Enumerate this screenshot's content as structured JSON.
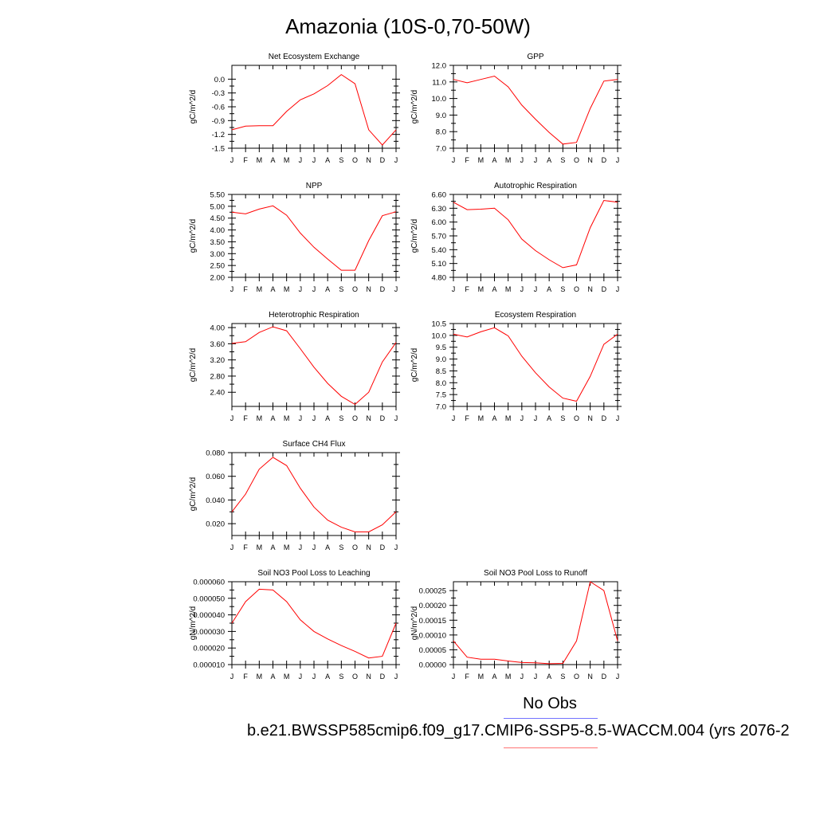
{
  "title": "Amazonia (10S-0,70-50W)",
  "legend": {
    "obs_label": "No Obs",
    "case_label": "b.e21.BWSSP585cmip6.f09_g17.CMIP6-SSP5-8.5-WACCM.004 (yrs 2076-2",
    "obs_color": "#0000ff",
    "case_color": "#ff0000"
  },
  "chart_data": [
    {
      "type": "line",
      "title": "Net Ecosystem Exchange",
      "ylabel": "gC/m^2/d",
      "categories": [
        "J",
        "F",
        "M",
        "A",
        "M",
        "J",
        "J",
        "A",
        "S",
        "O",
        "N",
        "D",
        "J"
      ],
      "yticks": [
        "0.0",
        "-0.3",
        "-0.6",
        "-0.9",
        "-1.2",
        "-1.5"
      ],
      "ytick_values": [
        0.0,
        -0.3,
        -0.6,
        -0.9,
        -1.2,
        -1.5
      ],
      "ylim": [
        -1.5,
        0.3
      ],
      "series": [
        {
          "values": [
            -1.1,
            -1.02,
            -1.01,
            -1.01,
            -0.7,
            -0.45,
            -0.32,
            -0.14,
            0.1,
            -0.1,
            -1.1,
            -1.43,
            -1.1
          ]
        }
      ]
    },
    {
      "type": "line",
      "title": "GPP",
      "ylabel": "gC/m^2/d",
      "categories": [
        "J",
        "F",
        "M",
        "A",
        "M",
        "J",
        "J",
        "A",
        "S",
        "O",
        "N",
        "D",
        "J"
      ],
      "yticks": [
        "12.0",
        "11.0",
        "10.0",
        "9.0",
        "8.0",
        "7.0"
      ],
      "ytick_values": [
        12,
        11,
        10,
        9,
        8,
        7
      ],
      "ylim": [
        7.0,
        12.0
      ],
      "series": [
        {
          "values": [
            11.15,
            10.95,
            11.15,
            11.35,
            10.7,
            9.6,
            8.75,
            7.95,
            7.25,
            7.35,
            9.4,
            11.05,
            11.15
          ]
        }
      ]
    },
    {
      "type": "line",
      "title": "NPP",
      "ylabel": "gC/m^2/d",
      "categories": [
        "J",
        "F",
        "M",
        "A",
        "M",
        "J",
        "J",
        "A",
        "S",
        "O",
        "N",
        "D",
        "J"
      ],
      "yticks": [
        "5.50",
        "5.00",
        "4.50",
        "4.00",
        "3.50",
        "3.00",
        "2.50",
        "2.00"
      ],
      "ytick_values": [
        5.5,
        5.0,
        4.5,
        4.0,
        3.5,
        3.0,
        2.5,
        2.0
      ],
      "ylim": [
        2.0,
        5.5
      ],
      "series": [
        {
          "values": [
            4.75,
            4.68,
            4.88,
            5.02,
            4.62,
            3.87,
            3.27,
            2.77,
            2.3,
            2.3,
            3.55,
            4.6,
            4.77
          ]
        }
      ]
    },
    {
      "type": "line",
      "title": "Autotrophic Respiration",
      "ylabel": "gC/m^2/d",
      "categories": [
        "J",
        "F",
        "M",
        "A",
        "M",
        "J",
        "J",
        "A",
        "S",
        "O",
        "N",
        "D",
        "J"
      ],
      "yticks": [
        "6.60",
        "6.30",
        "6.00",
        "5.70",
        "5.40",
        "5.10",
        "4.80"
      ],
      "ytick_values": [
        6.6,
        6.3,
        6.0,
        5.7,
        5.4,
        5.1,
        4.8
      ],
      "ylim": [
        4.8,
        6.6
      ],
      "series": [
        {
          "values": [
            6.43,
            6.27,
            6.28,
            6.3,
            6.05,
            5.63,
            5.38,
            5.18,
            5.01,
            5.07,
            5.88,
            6.47,
            6.43
          ]
        }
      ]
    },
    {
      "type": "line",
      "title": "Heterotrophic Respiration",
      "ylabel": "gC/m^2/d",
      "categories": [
        "J",
        "F",
        "M",
        "A",
        "M",
        "J",
        "J",
        "A",
        "S",
        "O",
        "N",
        "D",
        "J"
      ],
      "yticks": [
        "4.00",
        "3.60",
        "3.20",
        "2.80",
        "2.40"
      ],
      "ytick_values": [
        4.0,
        3.6,
        3.2,
        2.8,
        2.4
      ],
      "ylim": [
        2.05,
        4.1
      ],
      "series": [
        {
          "values": [
            3.61,
            3.65,
            3.88,
            4.02,
            3.92,
            3.48,
            3.02,
            2.62,
            2.3,
            2.1,
            2.4,
            3.15,
            3.63
          ]
        }
      ]
    },
    {
      "type": "line",
      "title": "Ecosystem Respiration",
      "ylabel": "gC/m^2/d",
      "categories": [
        "J",
        "F",
        "M",
        "A",
        "M",
        "J",
        "J",
        "A",
        "S",
        "O",
        "N",
        "D",
        "J"
      ],
      "yticks": [
        "10.5",
        "10.0",
        "9.5",
        "9.0",
        "8.5",
        "8.0",
        "7.5",
        "7.0"
      ],
      "ytick_values": [
        10.5,
        10.0,
        9.5,
        9.0,
        8.5,
        8.0,
        7.5,
        7.0
      ],
      "ylim": [
        7.0,
        10.5
      ],
      "series": [
        {
          "values": [
            10.05,
            9.93,
            10.15,
            10.32,
            9.98,
            9.12,
            8.42,
            7.82,
            7.35,
            7.22,
            8.27,
            9.62,
            10.05
          ]
        }
      ]
    },
    {
      "type": "line",
      "title": "Surface CH4 Flux",
      "ylabel": "gC/m^2/d",
      "categories": [
        "J",
        "F",
        "M",
        "A",
        "M",
        "J",
        "J",
        "A",
        "S",
        "O",
        "N",
        "D",
        "J"
      ],
      "yticks": [
        "0.080",
        "0.060",
        "0.040",
        "0.020"
      ],
      "ytick_values": [
        0.08,
        0.06,
        0.04,
        0.02
      ],
      "ylim": [
        0.01,
        0.08
      ],
      "series": [
        {
          "values": [
            0.03,
            0.045,
            0.066,
            0.076,
            0.069,
            0.05,
            0.034,
            0.023,
            0.017,
            0.013,
            0.013,
            0.019,
            0.03
          ]
        }
      ]
    },
    {
      "type": "line",
      "title": "Soil NO3 Pool Loss to Leaching",
      "ylabel": "gN/m^2/d",
      "categories": [
        "J",
        "F",
        "M",
        "A",
        "M",
        "J",
        "J",
        "A",
        "S",
        "O",
        "N",
        "D",
        "J"
      ],
      "yticks": [
        "0.000060",
        "0.000050",
        "0.000040",
        "0.000030",
        "0.000020",
        "0.000010"
      ],
      "ytick_values": [
        6e-05,
        5e-05,
        4e-05,
        3e-05,
        2e-05,
        1e-05
      ],
      "ylim": [
        1e-05,
        6e-05
      ],
      "series": [
        {
          "values": [
            3.5e-05,
            4.8e-05,
            5.55e-05,
            5.5e-05,
            4.8e-05,
            3.7e-05,
            3e-05,
            2.55e-05,
            2.15e-05,
            1.8e-05,
            1.4e-05,
            1.5e-05,
            3.5e-05
          ]
        }
      ]
    },
    {
      "type": "line",
      "title": "Soil NO3 Pool Loss to Runoff",
      "ylabel": "gN/m^2/d",
      "categories": [
        "J",
        "F",
        "M",
        "A",
        "M",
        "J",
        "J",
        "A",
        "S",
        "O",
        "N",
        "D",
        "J"
      ],
      "yticks": [
        "0.00025",
        "0.00020",
        "0.00015",
        "0.00010",
        "0.00005",
        "0.00000"
      ],
      "ytick_values": [
        0.00025,
        0.0002,
        0.00015,
        0.0001,
        5e-05,
        0.0
      ],
      "ylim": [
        0.0,
        0.00028
      ],
      "series": [
        {
          "values": [
            8e-05,
            2.5e-05,
            1.8e-05,
            1.8e-05,
            1.2e-05,
            7e-06,
            6e-06,
            3e-06,
            4e-06,
            8e-05,
            0.00028,
            0.00025,
            8e-05
          ]
        }
      ]
    }
  ]
}
